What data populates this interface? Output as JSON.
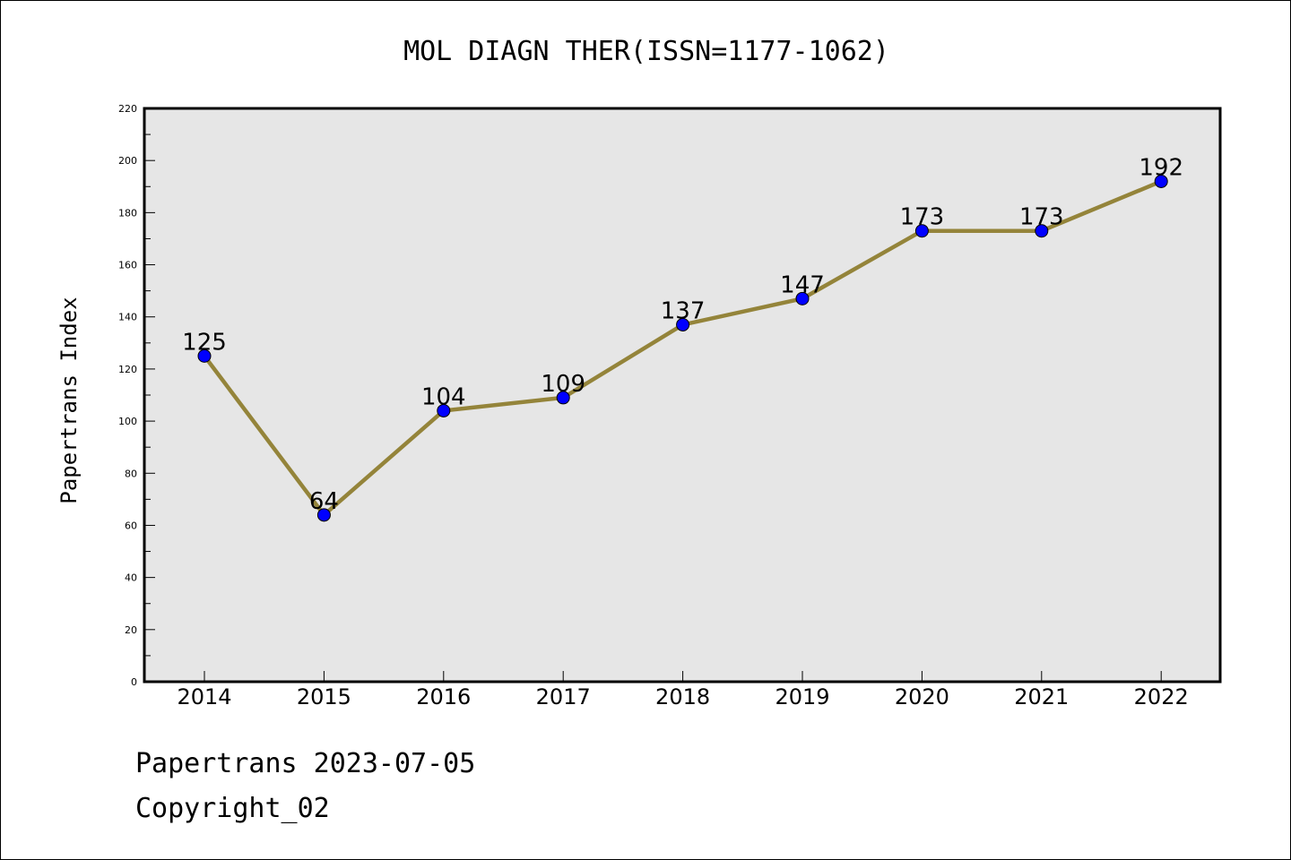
{
  "colors": {
    "plot_background": "#e6e6e6",
    "line": "#94843a",
    "marker": "#0000ff",
    "axis": "#000000"
  },
  "footer": {
    "line1": "Papertrans 2023-07-05",
    "line2": "Copyright_02"
  },
  "chart_data": {
    "type": "line",
    "title": "MOL DIAGN THER(ISSN=1177-1062)",
    "xlabel": "",
    "ylabel": "Papertrans Index",
    "categories": [
      "2014",
      "2015",
      "2016",
      "2017",
      "2018",
      "2019",
      "2020",
      "2021",
      "2022"
    ],
    "series": [
      {
        "values": [
          125,
          64,
          104,
          109,
          137,
          147,
          173,
          173,
          192
        ]
      }
    ],
    "data_labels": [
      "125",
      "64",
      "104",
      "109",
      "137",
      "147",
      "173",
      "173",
      "192"
    ],
    "ylim": [
      0,
      220
    ],
    "yticks": [
      0,
      20,
      40,
      60,
      80,
      100,
      120,
      140,
      160,
      180,
      200,
      220
    ],
    "ytick_labels": [
      "0",
      "20",
      "40",
      "60",
      "80",
      "100",
      "120",
      "140",
      "160",
      "180",
      "200",
      "220"
    ],
    "grid": false,
    "legend": "none"
  }
}
